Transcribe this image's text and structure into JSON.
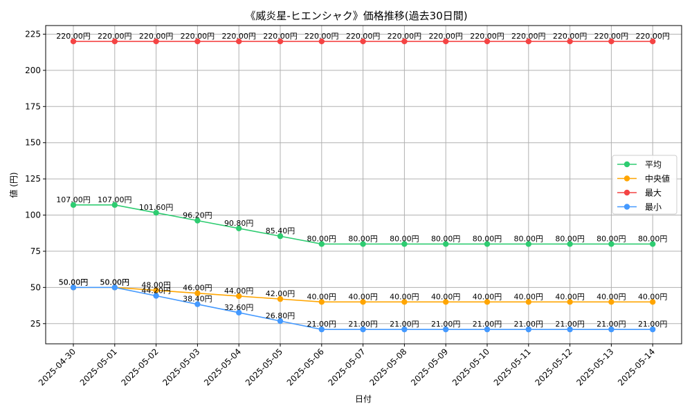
{
  "chart_data": {
    "type": "line",
    "title": "《威炎星-ヒエンシャク》価格推移(過去30日間)",
    "xlabel": "日付",
    "ylabel": "値 (円)",
    "x": [
      "2025-04-30",
      "2025-05-01",
      "2025-05-02",
      "2025-05-03",
      "2025-05-04",
      "2025-05-05",
      "2025-05-06",
      "2025-05-07",
      "2025-05-08",
      "2025-05-09",
      "2025-05-10",
      "2025-05-11",
      "2025-05-12",
      "2025-05-13",
      "2025-05-14"
    ],
    "yticks": [
      25,
      50,
      75,
      100,
      125,
      150,
      175,
      200,
      225
    ],
    "ylim": [
      11.05,
      230.95
    ],
    "grid": true,
    "legend_position": "center-right",
    "value_suffix": "円",
    "series": [
      {
        "name": "平均",
        "color": "#2ecc71",
        "values": [
          107,
          107,
          101.6,
          96.2,
          90.8,
          85.4,
          80,
          80,
          80,
          80,
          80,
          80,
          80,
          80,
          80
        ]
      },
      {
        "name": "中央値",
        "color": "#ffa500",
        "values": [
          50,
          50,
          48,
          46,
          44,
          42,
          40,
          40,
          40,
          40,
          40,
          40,
          40,
          40,
          40
        ]
      },
      {
        "name": "最大",
        "color": "#f44444",
        "values": [
          220,
          220,
          220,
          220,
          220,
          220,
          220,
          220,
          220,
          220,
          220,
          220,
          220,
          220,
          220
        ]
      },
      {
        "name": "最小",
        "color": "#4499ff",
        "values": [
          50,
          50,
          44.2,
          38.4,
          32.6,
          26.8,
          21,
          21,
          21,
          21,
          21,
          21,
          21,
          21,
          21
        ]
      }
    ]
  }
}
